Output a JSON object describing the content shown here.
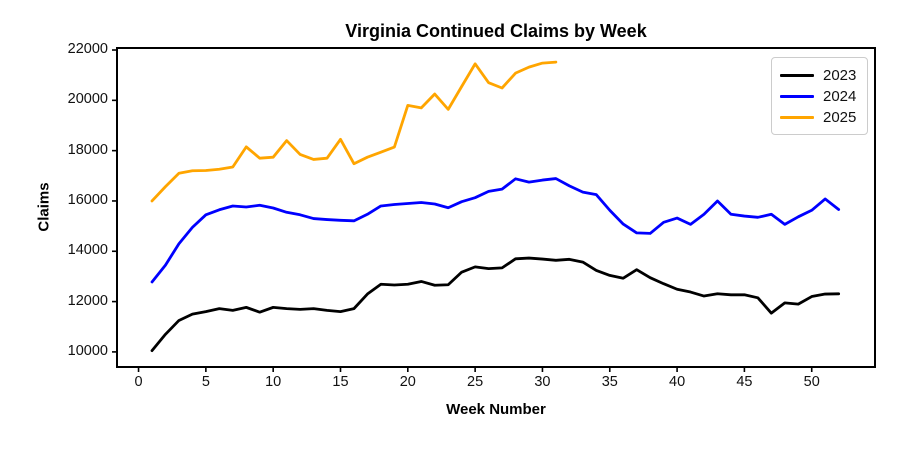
{
  "chart_data": {
    "type": "line",
    "title": "Virginia Continued Claims by Week",
    "xlabel": "Week Number",
    "ylabel": "Claims",
    "grid": false,
    "legend_position": "upper right",
    "xlim": [
      -1.6,
      54.7
    ],
    "ylim": [
      9400,
      22080
    ],
    "x_ticks": [
      0,
      5,
      10,
      15,
      20,
      25,
      30,
      35,
      40,
      45,
      50
    ],
    "y_ticks": [
      10000,
      12000,
      14000,
      16000,
      18000,
      20000,
      22000
    ],
    "series": [
      {
        "name": "2023",
        "color": "#000000",
        "x": [
          1,
          2,
          3,
          4,
          5,
          6,
          7,
          8,
          9,
          10,
          11,
          12,
          13,
          14,
          15,
          16,
          17,
          18,
          19,
          20,
          21,
          22,
          23,
          24,
          25,
          26,
          27,
          28,
          29,
          30,
          31,
          32,
          33,
          34,
          35,
          36,
          37,
          38,
          39,
          40,
          41,
          42,
          43,
          44,
          45,
          46,
          47,
          48,
          49,
          50,
          51,
          52
        ],
        "values": [
          10050,
          10700,
          11250,
          11500,
          11600,
          11720,
          11650,
          11770,
          11580,
          11770,
          11720,
          11690,
          11720,
          11650,
          11600,
          11720,
          12300,
          12690,
          12660,
          12690,
          12800,
          12650,
          12670,
          13170,
          13380,
          13310,
          13340,
          13700,
          13730,
          13690,
          13640,
          13680,
          13570,
          13240,
          13040,
          12930,
          13270,
          12950,
          12710,
          12490,
          12380,
          12220,
          12310,
          12270,
          12270,
          12150,
          11540,
          11950,
          11900,
          12200,
          12300,
          12310
        ]
      },
      {
        "name": "2024",
        "color": "#0000ff",
        "x": [
          1,
          2,
          3,
          4,
          5,
          6,
          7,
          8,
          9,
          10,
          11,
          12,
          13,
          14,
          15,
          16,
          17,
          18,
          19,
          20,
          21,
          22,
          23,
          24,
          25,
          26,
          27,
          28,
          29,
          30,
          31,
          32,
          33,
          34,
          35,
          36,
          37,
          38,
          39,
          40,
          41,
          42,
          43,
          44,
          45,
          46,
          47,
          48,
          49,
          50,
          51,
          52
        ],
        "values": [
          12780,
          13450,
          14300,
          14950,
          15450,
          15650,
          15800,
          15760,
          15830,
          15720,
          15550,
          15450,
          15300,
          15260,
          15230,
          15210,
          15470,
          15800,
          15860,
          15900,
          15940,
          15880,
          15730,
          15970,
          16130,
          16380,
          16470,
          16880,
          16750,
          16830,
          16890,
          16600,
          16350,
          16250,
          15630,
          15080,
          14730,
          14710,
          15150,
          15320,
          15070,
          15470,
          16000,
          15470,
          15400,
          15350,
          15470,
          15070,
          15370,
          15630,
          16080,
          15660
        ]
      },
      {
        "name": "2025",
        "color": "#ffa500",
        "x": [
          1,
          2,
          3,
          4,
          5,
          6,
          7,
          8,
          9,
          10,
          11,
          12,
          13,
          14,
          15,
          16,
          17,
          18,
          19,
          20,
          21,
          22,
          23,
          24,
          25,
          26,
          27,
          28,
          29,
          30,
          31
        ],
        "values": [
          16000,
          16570,
          17100,
          17200,
          17210,
          17260,
          17350,
          18150,
          17700,
          17740,
          18400,
          17850,
          17650,
          17700,
          18450,
          17480,
          17740,
          17940,
          18140,
          19800,
          19700,
          20250,
          19640,
          20550,
          21450,
          20700,
          20490,
          21080,
          21320,
          21480,
          21520
        ]
      }
    ]
  }
}
